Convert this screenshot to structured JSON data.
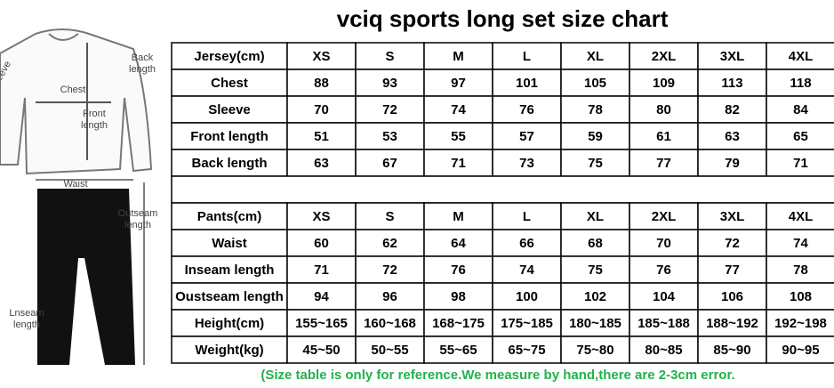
{
  "title": "vciq sports long set size chart",
  "figure": {
    "labels": [
      {
        "lines": [
          "Back",
          "length"
        ]
      },
      {
        "lines": [
          "Chest"
        ]
      },
      {
        "lines": [
          "Front",
          "length"
        ]
      },
      {
        "lines": [
          "eeve"
        ]
      },
      {
        "lines": [
          "Waist"
        ]
      },
      {
        "lines": [
          "Outseam",
          "length"
        ]
      },
      {
        "lines": [
          "Lnseam",
          "length"
        ]
      }
    ]
  },
  "jersey": {
    "header": [
      "Jersey(cm)",
      "XS",
      "S",
      "M",
      "L",
      "XL",
      "2XL",
      "3XL",
      "4XL"
    ],
    "rows": [
      [
        "Chest",
        "88",
        "93",
        "97",
        "101",
        "105",
        "109",
        "113",
        "118"
      ],
      [
        "Sleeve",
        "70",
        "72",
        "74",
        "76",
        "78",
        "80",
        "82",
        "84"
      ],
      [
        "Front length",
        "51",
        "53",
        "55",
        "57",
        "59",
        "61",
        "63",
        "65"
      ],
      [
        "Back length",
        "63",
        "67",
        "71",
        "73",
        "75",
        "77",
        "79",
        "71"
      ]
    ]
  },
  "pants": {
    "header": [
      "Pants(cm)",
      "XS",
      "S",
      "M",
      "L",
      "XL",
      "2XL",
      "3XL",
      "4XL"
    ],
    "rows": [
      [
        "Waist",
        "60",
        "62",
        "64",
        "66",
        "68",
        "70",
        "72",
        "74"
      ],
      [
        "Inseam length",
        "71",
        "72",
        "76",
        "74",
        "75",
        "76",
        "77",
        "78"
      ],
      [
        "Oustseam length",
        "94",
        "96",
        "98",
        "100",
        "102",
        "104",
        "106",
        "108"
      ],
      [
        "Height(cm)",
        "155~165",
        "160~168",
        "168~175",
        "175~185",
        "180~185",
        "185~188",
        "188~192",
        "192~198"
      ],
      [
        "Weight(kg)",
        "45~50",
        "50~55",
        "55~65",
        "65~75",
        "75~80",
        "80~85",
        "85~90",
        "90~95"
      ]
    ]
  },
  "note": "(Size table is only for reference.We measure by hand,there are 2-3cm error."
}
